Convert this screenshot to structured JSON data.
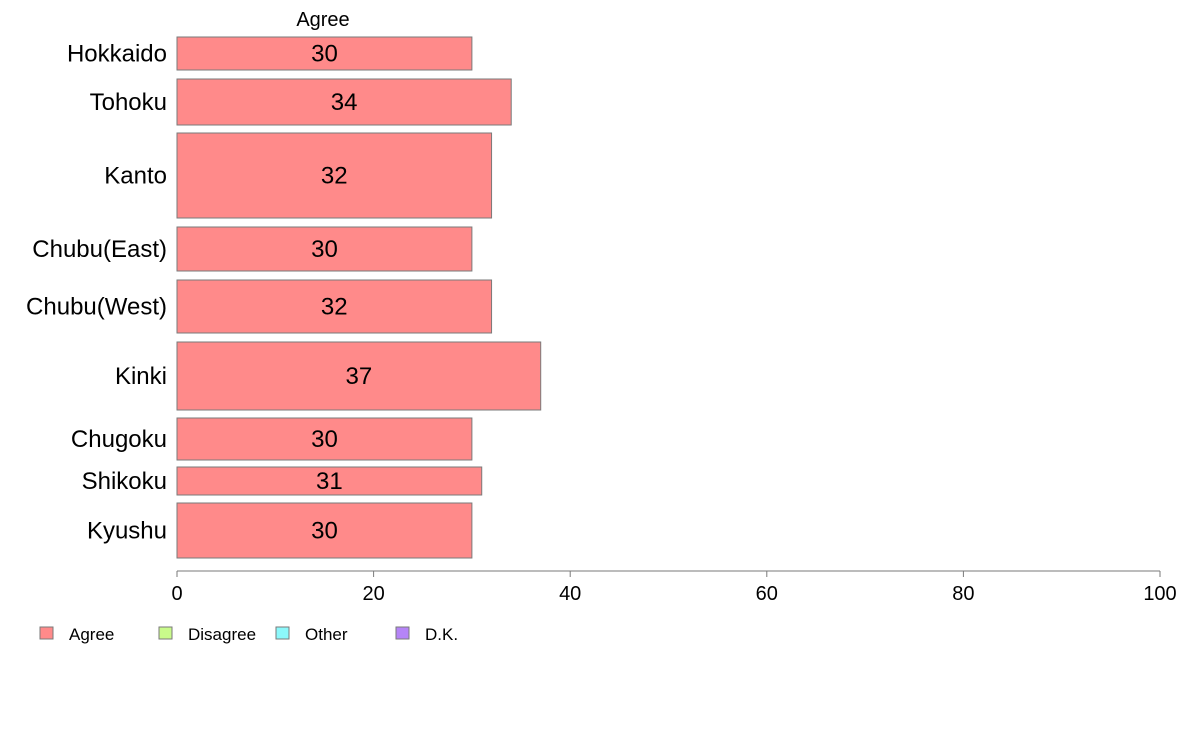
{
  "chart_data": {
    "type": "bar",
    "orientation": "horizontal",
    "stacked": true,
    "top_series_label": "Agree",
    "categories": [
      "Hokkaido",
      "Tohoku",
      "Kanto",
      "Chubu(East)",
      "Chubu(West)",
      "Kinki",
      "Chugoku",
      "Shikoku",
      "Kyushu"
    ],
    "series": [
      {
        "name": "Agree",
        "values": [
          30,
          34,
          32,
          30,
          32,
          37,
          30,
          31,
          30
        ],
        "color": "#ff8a8a"
      }
    ],
    "legend": [
      {
        "name": "Agree",
        "color": "#ff8a8a"
      },
      {
        "name": "Disagree",
        "color": "#c9fb8b"
      },
      {
        "name": "Other",
        "color": "#8cf8fb"
      },
      {
        "name": "D.K.",
        "color": "#b584f7"
      }
    ],
    "xlim": [
      0,
      100
    ],
    "xticks": [
      "0",
      "20",
      "40",
      "60",
      "80",
      "100"
    ],
    "grid": false,
    "legend_position": "bottom-left"
  }
}
